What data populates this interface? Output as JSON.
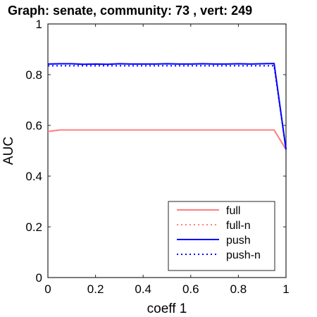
{
  "chart_data": {
    "type": "line",
    "title": "Graph: senate, community: 73 , vert: 249",
    "xlabel": "coeff 1",
    "ylabel": "AUC",
    "xlim": [
      0,
      1
    ],
    "ylim": [
      0,
      1
    ],
    "x_ticks": [
      "0",
      "0.2",
      "0.4",
      "0.6",
      "0.8",
      "1"
    ],
    "x_tick_values": [
      0,
      0.2,
      0.4,
      0.6,
      0.8,
      1
    ],
    "y_ticks": [
      "0",
      "0.2",
      "0.4",
      "0.6",
      "0.8",
      "1"
    ],
    "y_tick_values": [
      0,
      0.2,
      0.4,
      0.6,
      0.8,
      1
    ],
    "grid": false,
    "legend_position": "bottom-right",
    "series": [
      {
        "name": "full",
        "color": "#ff7f7f",
        "style": "solid",
        "x": [
          0,
          0.05,
          0.1,
          0.2,
          0.3,
          0.4,
          0.5,
          0.6,
          0.7,
          0.8,
          0.9,
          0.95,
          1
        ],
        "y": [
          0.576,
          0.582,
          0.582,
          0.582,
          0.582,
          0.582,
          0.582,
          0.582,
          0.582,
          0.582,
          0.582,
          0.582,
          0.505
        ]
      },
      {
        "name": "full-n",
        "color": "#ff7f7f",
        "style": "dotted",
        "x": [
          0,
          0.05,
          0.1,
          0.2,
          0.3,
          0.4,
          0.5,
          0.6,
          0.7,
          0.8,
          0.9,
          0.95,
          1
        ],
        "y": [
          0.576,
          0.582,
          0.582,
          0.582,
          0.582,
          0.582,
          0.582,
          0.582,
          0.582,
          0.582,
          0.582,
          0.582,
          0.505
        ]
      },
      {
        "name": "push",
        "color": "#0000ff",
        "style": "solid",
        "x": [
          0,
          0.05,
          0.1,
          0.15,
          0.2,
          0.25,
          0.3,
          0.35,
          0.4,
          0.45,
          0.5,
          0.55,
          0.6,
          0.65,
          0.7,
          0.75,
          0.8,
          0.85,
          0.9,
          0.95,
          1
        ],
        "y": [
          0.842,
          0.843,
          0.843,
          0.841,
          0.842,
          0.841,
          0.843,
          0.842,
          0.842,
          0.842,
          0.843,
          0.842,
          0.842,
          0.843,
          0.842,
          0.842,
          0.843,
          0.842,
          0.843,
          0.844,
          0.505
        ]
      },
      {
        "name": "push-n",
        "color": "#0000ff",
        "style": "dotted",
        "x": [
          0,
          0.05,
          0.1,
          0.15,
          0.2,
          0.25,
          0.3,
          0.35,
          0.4,
          0.45,
          0.5,
          0.55,
          0.6,
          0.65,
          0.7,
          0.75,
          0.8,
          0.85,
          0.9,
          0.95,
          1
        ],
        "y": [
          0.835,
          0.835,
          0.835,
          0.835,
          0.835,
          0.835,
          0.835,
          0.835,
          0.835,
          0.835,
          0.835,
          0.835,
          0.835,
          0.835,
          0.835,
          0.835,
          0.835,
          0.835,
          0.835,
          0.835,
          0.505
        ]
      }
    ]
  }
}
